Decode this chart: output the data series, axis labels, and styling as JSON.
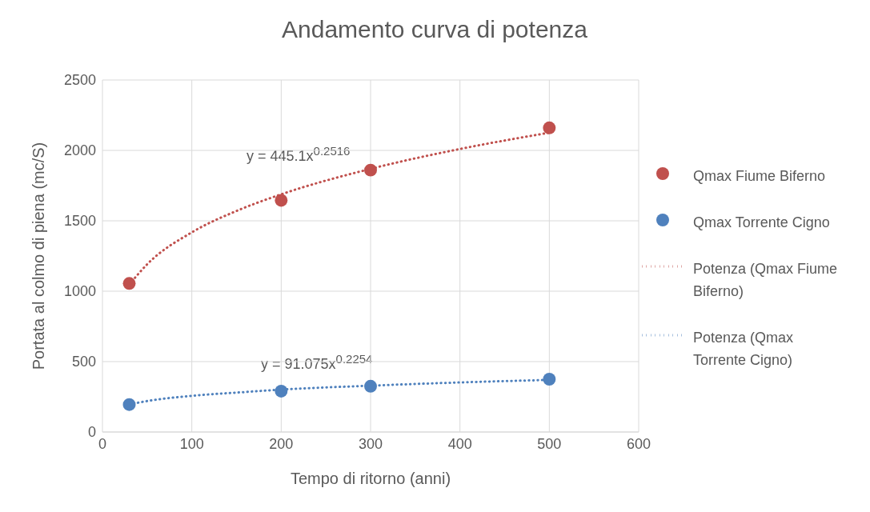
{
  "chart_data": {
    "type": "scatter",
    "title": "Andamento curva di potenza",
    "xlabel": "Tempo di ritorno (anni)",
    "ylabel": "Portata al colmo di piena (mc/S)",
    "xlim": [
      0,
      600
    ],
    "xticks": [
      0,
      100,
      200,
      300,
      400,
      500,
      600
    ],
    "ylim": [
      0,
      2500
    ],
    "yticks": [
      0,
      500,
      1000,
      1500,
      2000,
      2500
    ],
    "grid": true,
    "legend": "right",
    "marker": "circle",
    "series": [
      {
        "name": "Qmax Fiume Biferno",
        "color": "#c0504d",
        "x": [
          30,
          200,
          300,
          500
        ],
        "values": [
          1055,
          1645,
          1860,
          2160
        ]
      },
      {
        "name": "Qmax Torrente Cigno",
        "color": "#4f81bd",
        "x": [
          30,
          200,
          300,
          500
        ],
        "values": [
          195,
          290,
          325,
          375
        ]
      },
      {
        "name": "Potenza (Qmax Fiume Biferno)",
        "type": "line",
        "marker": "none",
        "line_style": "dotted",
        "color": "#c0504d",
        "x": [
          30,
          50,
          100,
          150,
          200,
          300,
          400,
          500
        ],
        "values": [
          1047,
          1191,
          1418,
          1570,
          1688,
          1869,
          2010,
          2126
        ]
      },
      {
        "name": "Potenza (Qmax Torrente Cigno)",
        "type": "line",
        "marker": "none",
        "line_style": "dotted",
        "color": "#4f81bd",
        "x": [
          30,
          50,
          100,
          150,
          200,
          300,
          400,
          500
        ],
        "values": [
          196,
          220,
          257,
          280,
          301,
          329,
          352,
          370
        ]
      }
    ],
    "annotations": [
      "y = 445.1x$^{0.2516}$",
      "y = 91.075x$^{0.2254}$"
    ]
  }
}
